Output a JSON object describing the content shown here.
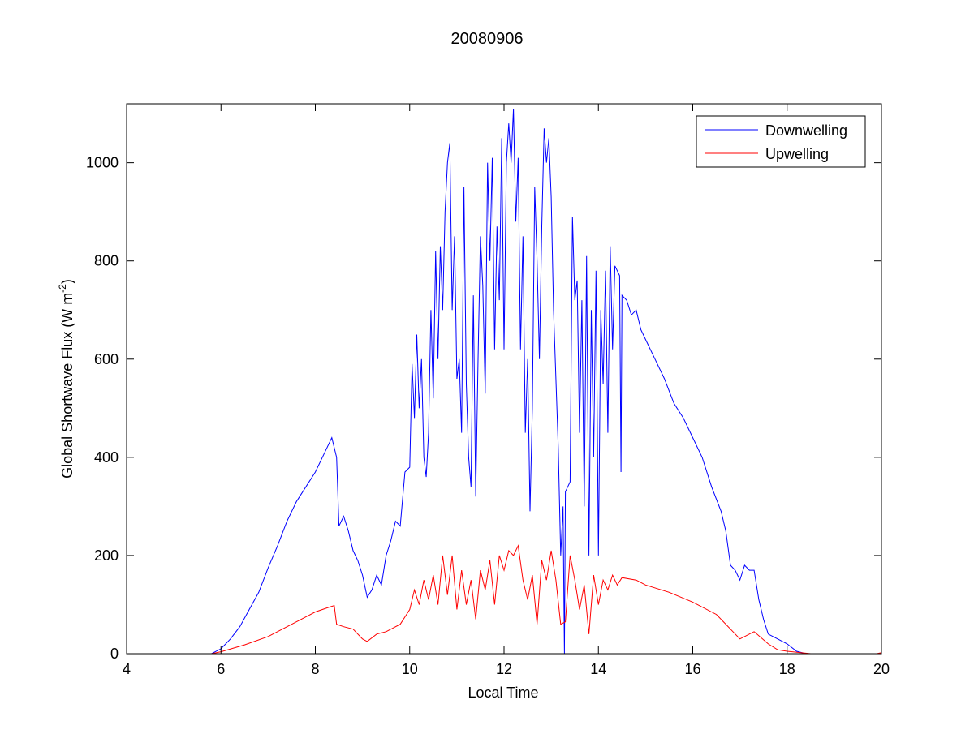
{
  "chart_data": {
    "type": "line",
    "title": "20080906",
    "xlabel": "Local Time",
    "ylabel": {
      "prefix": "Global Shortwave Flux (W m",
      "sup": "-2",
      "suffix": ")"
    },
    "xlim": [
      4,
      20
    ],
    "ylim": [
      0,
      1120
    ],
    "xticks": [
      4,
      6,
      8,
      10,
      12,
      14,
      16,
      18,
      20
    ],
    "yticks": [
      0,
      200,
      400,
      600,
      800,
      1000
    ],
    "grid": false,
    "legend_placement": "top-right",
    "series": [
      {
        "name": "Downwelling",
        "color": "#0000ff",
        "points": [
          [
            5,
            0
          ],
          [
            5.8,
            0
          ],
          [
            6.0,
            10
          ],
          [
            6.2,
            30
          ],
          [
            6.4,
            55
          ],
          [
            6.6,
            90
          ],
          [
            6.8,
            125
          ],
          [
            7.0,
            175
          ],
          [
            7.2,
            220
          ],
          [
            7.4,
            270
          ],
          [
            7.6,
            310
          ],
          [
            7.8,
            340
          ],
          [
            8.0,
            370
          ],
          [
            8.2,
            410
          ],
          [
            8.35,
            440
          ],
          [
            8.45,
            400
          ],
          [
            8.5,
            260
          ],
          [
            8.6,
            280
          ],
          [
            8.7,
            250
          ],
          [
            8.8,
            210
          ],
          [
            8.9,
            190
          ],
          [
            9.0,
            160
          ],
          [
            9.1,
            115
          ],
          [
            9.2,
            130
          ],
          [
            9.3,
            160
          ],
          [
            9.4,
            140
          ],
          [
            9.5,
            200
          ],
          [
            9.6,
            230
          ],
          [
            9.7,
            270
          ],
          [
            9.8,
            260
          ],
          [
            9.9,
            370
          ],
          [
            10.0,
            380
          ],
          [
            10.05,
            590
          ],
          [
            10.1,
            480
          ],
          [
            10.15,
            650
          ],
          [
            10.2,
            500
          ],
          [
            10.25,
            600
          ],
          [
            10.3,
            400
          ],
          [
            10.35,
            360
          ],
          [
            10.4,
            450
          ],
          [
            10.45,
            700
          ],
          [
            10.5,
            520
          ],
          [
            10.55,
            820
          ],
          [
            10.6,
            600
          ],
          [
            10.65,
            830
          ],
          [
            10.7,
            700
          ],
          [
            10.75,
            900
          ],
          [
            10.8,
            1000
          ],
          [
            10.85,
            1040
          ],
          [
            10.9,
            700
          ],
          [
            10.95,
            850
          ],
          [
            11.0,
            560
          ],
          [
            11.05,
            600
          ],
          [
            11.1,
            450
          ],
          [
            11.15,
            950
          ],
          [
            11.2,
            550
          ],
          [
            11.25,
            400
          ],
          [
            11.3,
            340
          ],
          [
            11.35,
            730
          ],
          [
            11.4,
            320
          ],
          [
            11.45,
            600
          ],
          [
            11.5,
            850
          ],
          [
            11.55,
            750
          ],
          [
            11.6,
            530
          ],
          [
            11.65,
            1000
          ],
          [
            11.7,
            800
          ],
          [
            11.75,
            1010
          ],
          [
            11.8,
            620
          ],
          [
            11.85,
            870
          ],
          [
            11.9,
            720
          ],
          [
            11.95,
            1050
          ],
          [
            12.0,
            620
          ],
          [
            12.05,
            1000
          ],
          [
            12.1,
            1080
          ],
          [
            12.15,
            1000
          ],
          [
            12.2,
            1110
          ],
          [
            12.25,
            880
          ],
          [
            12.3,
            1010
          ],
          [
            12.35,
            620
          ],
          [
            12.4,
            850
          ],
          [
            12.45,
            450
          ],
          [
            12.5,
            600
          ],
          [
            12.55,
            290
          ],
          [
            12.6,
            500
          ],
          [
            12.65,
            950
          ],
          [
            12.7,
            800
          ],
          [
            12.75,
            600
          ],
          [
            12.8,
            870
          ],
          [
            12.85,
            1070
          ],
          [
            12.9,
            1000
          ],
          [
            12.95,
            1050
          ],
          [
            13.0,
            930
          ],
          [
            13.05,
            700
          ],
          [
            13.1,
            560
          ],
          [
            13.15,
            420
          ],
          [
            13.2,
            200
          ],
          [
            13.25,
            300
          ],
          [
            13.28,
            0
          ],
          [
            13.3,
            330
          ],
          [
            13.35,
            340
          ],
          [
            13.4,
            350
          ],
          [
            13.45,
            890
          ],
          [
            13.5,
            720
          ],
          [
            13.55,
            760
          ],
          [
            13.6,
            450
          ],
          [
            13.65,
            720
          ],
          [
            13.7,
            300
          ],
          [
            13.75,
            810
          ],
          [
            13.8,
            200
          ],
          [
            13.85,
            700
          ],
          [
            13.9,
            400
          ],
          [
            13.95,
            780
          ],
          [
            14.0,
            200
          ],
          [
            14.05,
            700
          ],
          [
            14.1,
            550
          ],
          [
            14.15,
            780
          ],
          [
            14.2,
            450
          ],
          [
            14.25,
            830
          ],
          [
            14.3,
            620
          ],
          [
            14.35,
            790
          ],
          [
            14.4,
            780
          ],
          [
            14.45,
            770
          ],
          [
            14.48,
            370
          ],
          [
            14.5,
            730
          ],
          [
            14.6,
            720
          ],
          [
            14.7,
            690
          ],
          [
            14.8,
            700
          ],
          [
            14.9,
            660
          ],
          [
            15.0,
            640
          ],
          [
            15.2,
            600
          ],
          [
            15.4,
            560
          ],
          [
            15.6,
            510
          ],
          [
            15.8,
            480
          ],
          [
            16.0,
            440
          ],
          [
            16.2,
            400
          ],
          [
            16.4,
            340
          ],
          [
            16.6,
            290
          ],
          [
            16.7,
            250
          ],
          [
            16.8,
            180
          ],
          [
            16.9,
            170
          ],
          [
            17.0,
            150
          ],
          [
            17.1,
            180
          ],
          [
            17.2,
            170
          ],
          [
            17.3,
            170
          ],
          [
            17.4,
            110
          ],
          [
            17.5,
            70
          ],
          [
            17.6,
            40
          ],
          [
            17.8,
            30
          ],
          [
            18.0,
            20
          ],
          [
            18.2,
            5
          ],
          [
            18.4,
            0
          ],
          [
            18.6,
            0
          ]
        ]
      },
      {
        "name": "Upwelling",
        "color": "#ff0000",
        "points": [
          [
            5,
            0
          ],
          [
            5.8,
            0
          ],
          [
            6.0,
            4
          ],
          [
            6.5,
            18
          ],
          [
            7.0,
            35
          ],
          [
            7.5,
            60
          ],
          [
            8.0,
            85
          ],
          [
            8.3,
            95
          ],
          [
            8.4,
            98
          ],
          [
            8.45,
            60
          ],
          [
            8.6,
            55
          ],
          [
            8.8,
            50
          ],
          [
            9.0,
            30
          ],
          [
            9.1,
            25
          ],
          [
            9.3,
            40
          ],
          [
            9.5,
            45
          ],
          [
            9.8,
            60
          ],
          [
            10.0,
            90
          ],
          [
            10.1,
            130
          ],
          [
            10.2,
            100
          ],
          [
            10.3,
            150
          ],
          [
            10.4,
            110
          ],
          [
            10.5,
            160
          ],
          [
            10.6,
            100
          ],
          [
            10.7,
            200
          ],
          [
            10.8,
            120
          ],
          [
            10.9,
            200
          ],
          [
            11.0,
            90
          ],
          [
            11.1,
            170
          ],
          [
            11.2,
            100
          ],
          [
            11.3,
            150
          ],
          [
            11.4,
            70
          ],
          [
            11.5,
            170
          ],
          [
            11.6,
            130
          ],
          [
            11.7,
            190
          ],
          [
            11.8,
            100
          ],
          [
            11.9,
            200
          ],
          [
            12.0,
            170
          ],
          [
            12.1,
            210
          ],
          [
            12.2,
            200
          ],
          [
            12.3,
            220
          ],
          [
            12.4,
            150
          ],
          [
            12.5,
            110
          ],
          [
            12.6,
            160
          ],
          [
            12.7,
            60
          ],
          [
            12.8,
            190
          ],
          [
            12.9,
            150
          ],
          [
            13.0,
            210
          ],
          [
            13.1,
            150
          ],
          [
            13.2,
            60
          ],
          [
            13.3,
            65
          ],
          [
            13.4,
            200
          ],
          [
            13.5,
            150
          ],
          [
            13.6,
            90
          ],
          [
            13.7,
            140
          ],
          [
            13.8,
            40
          ],
          [
            13.9,
            160
          ],
          [
            14.0,
            100
          ],
          [
            14.1,
            150
          ],
          [
            14.2,
            130
          ],
          [
            14.3,
            160
          ],
          [
            14.4,
            140
          ],
          [
            14.5,
            155
          ],
          [
            14.8,
            150
          ],
          [
            15.0,
            140
          ],
          [
            15.5,
            125
          ],
          [
            16.0,
            105
          ],
          [
            16.5,
            80
          ],
          [
            16.8,
            50
          ],
          [
            17.0,
            30
          ],
          [
            17.3,
            45
          ],
          [
            17.6,
            20
          ],
          [
            17.8,
            8
          ],
          [
            18.0,
            5
          ],
          [
            18.5,
            0
          ],
          [
            19.9,
            0
          ],
          [
            20,
            2
          ]
        ]
      }
    ]
  }
}
